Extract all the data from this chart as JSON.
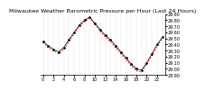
{
  "title": "Milwaukee Weather Barometric Pressure per Hour (Last 24 Hours)",
  "hours": [
    0,
    1,
    2,
    3,
    4,
    5,
    6,
    7,
    8,
    9,
    10,
    11,
    12,
    13,
    14,
    15,
    16,
    17,
    18,
    19,
    20,
    21,
    22,
    23
  ],
  "pressure_black": [
    29.45,
    29.38,
    29.32,
    29.28,
    29.35,
    29.48,
    29.6,
    29.72,
    29.8,
    29.85,
    29.75,
    29.65,
    29.55,
    29.48,
    29.38,
    29.28,
    29.18,
    29.08,
    29.0,
    28.98,
    29.1,
    29.25,
    29.4,
    29.52
  ],
  "pressure_red": [
    29.43,
    29.35,
    29.3,
    29.25,
    29.32,
    29.45,
    29.58,
    29.7,
    29.78,
    29.83,
    29.73,
    29.62,
    29.52,
    29.45,
    29.35,
    29.25,
    29.15,
    29.05,
    28.97,
    28.95,
    29.08,
    29.22,
    29.37,
    29.5
  ],
  "ylim_min": 28.9,
  "ylim_max": 29.9,
  "ytick_values": [
    28.9,
    29.0,
    29.1,
    29.2,
    29.3,
    29.4,
    29.5,
    29.6,
    29.7,
    29.8,
    29.9
  ],
  "bg_color": "#ffffff",
  "grid_color": "#888888",
  "black_color": "#000000",
  "red_color": "#ff0000",
  "title_fontsize": 4.5,
  "tick_fontsize": 3.5,
  "label_fontsize": 4.0
}
